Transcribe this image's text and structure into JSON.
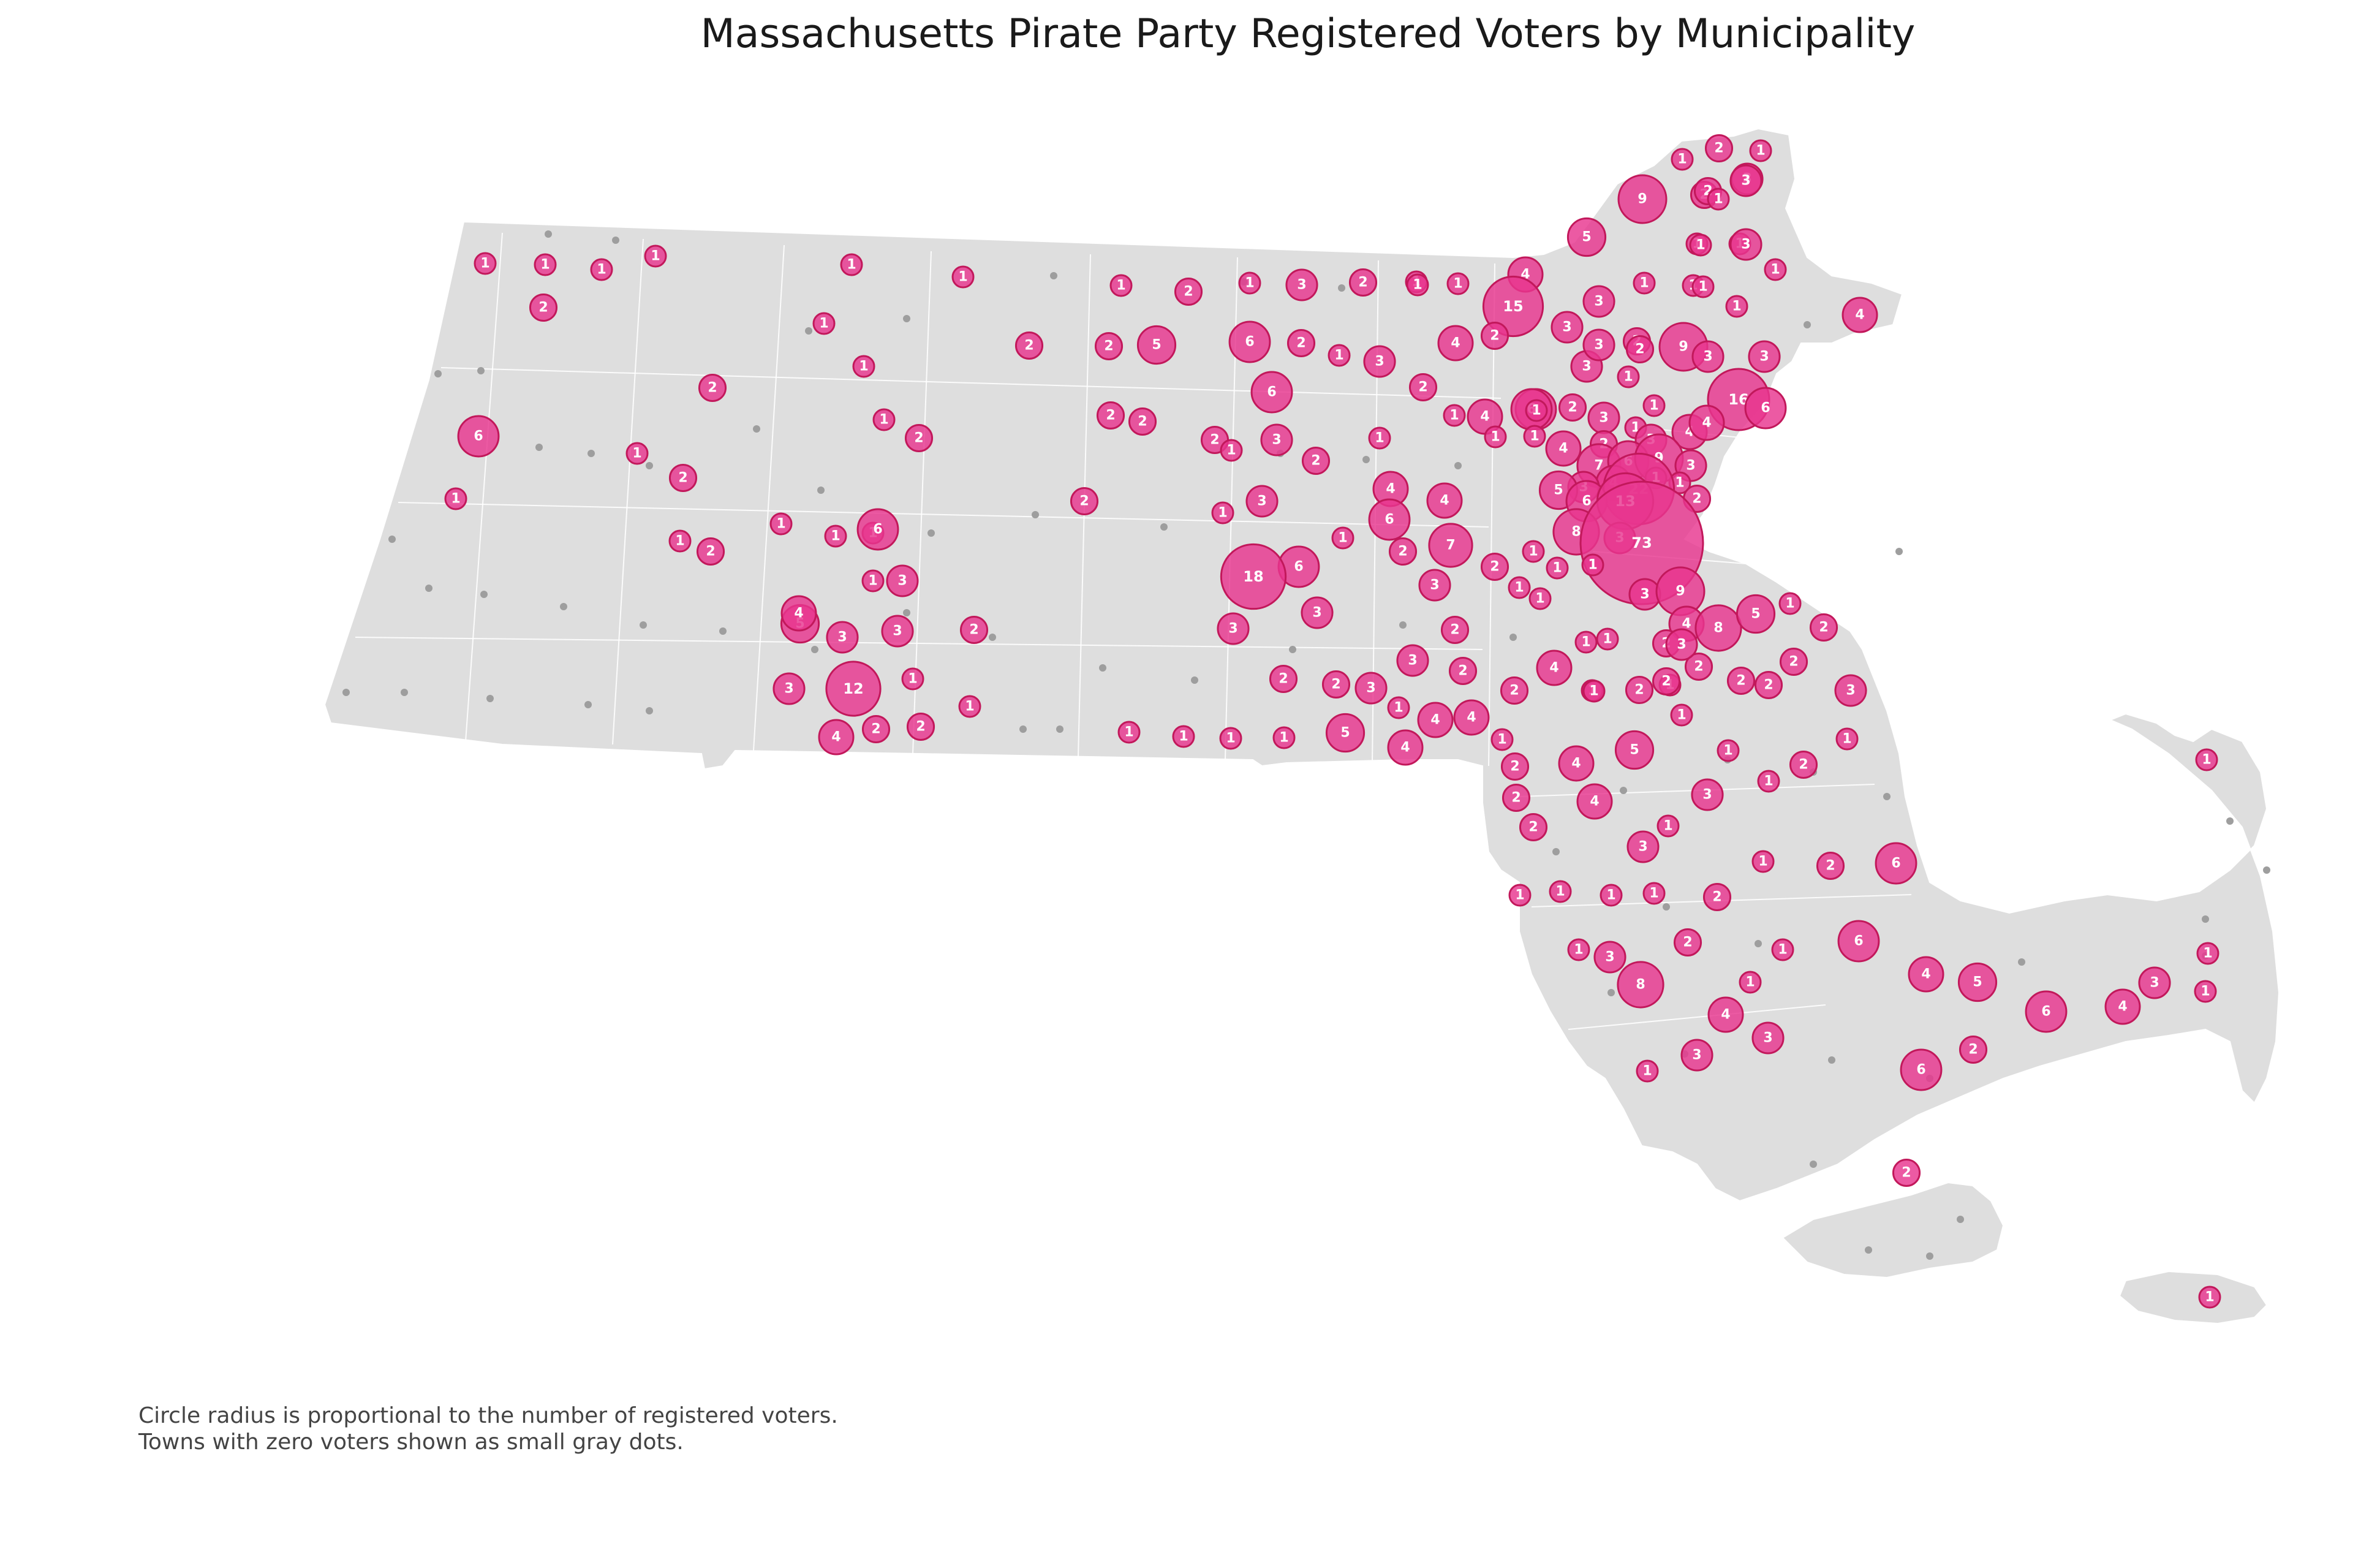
{
  "title": "Massachusetts Pirate Party Registered Voters by Municipality",
  "notes": [
    "Circle radius is proportional to the number of registered voters.",
    "Towns with zero voters shown as small gray dots."
  ],
  "colors": {
    "land": "#dedede",
    "town_border": "#ffffff",
    "bubble_fill": "#e8368f",
    "bubble_stroke": "#c2185b",
    "label": "#ffffff",
    "zero_dot": "#9e9e9e"
  },
  "map": {
    "region": "Massachusetts",
    "encoding": "proportional-circle",
    "bubble_values": [
      1,
      1,
      1,
      1,
      1,
      2,
      1,
      1,
      1,
      1,
      1,
      2,
      1,
      1,
      3,
      2,
      1,
      1,
      1,
      1,
      1,
      2,
      5,
      6,
      2,
      1,
      3,
      2,
      1,
      1,
      1,
      1,
      1,
      4,
      15,
      9,
      5,
      3,
      2,
      1,
      2,
      1,
      1,
      1,
      1,
      2,
      1,
      2,
      1,
      1,
      3,
      1,
      4,
      1,
      1,
      3,
      2,
      6,
      1,
      1,
      2,
      2,
      2,
      1,
      2,
      5,
      6,
      1,
      1,
      1,
      6,
      2,
      1,
      4,
      2,
      2,
      1,
      3,
      3,
      3,
      6,
      2,
      1,
      1,
      9,
      3,
      3,
      16,
      6,
      4,
      1,
      1,
      1,
      6,
      2,
      1,
      1,
      1,
      2,
      1,
      2,
      1,
      3,
      4,
      4,
      2,
      2,
      1,
      1,
      3,
      2,
      4,
      3,
      1,
      7,
      6,
      9,
      3,
      4,
      1,
      3,
      1,
      5,
      6,
      22,
      1,
      3,
      6,
      13,
      2,
      8,
      6,
      3,
      73,
      6,
      1,
      6,
      2,
      3,
      18,
      7,
      5,
      2,
      1,
      3,
      1,
      1,
      9,
      1,
      1,
      3,
      4,
      5,
      8,
      2,
      4,
      3,
      3,
      2,
      4,
      2,
      1,
      2,
      3,
      1,
      2,
      1,
      3,
      2,
      1,
      3,
      2,
      1,
      2,
      1,
      2,
      2,
      1,
      1,
      1,
      1,
      5,
      1,
      4,
      4,
      1,
      1,
      4,
      1,
      2,
      2,
      1,
      12,
      3,
      1,
      1,
      2,
      2,
      1,
      2,
      1,
      3,
      1,
      4,
      2,
      2,
      2,
      5,
      4,
      3,
      6,
      1,
      2,
      1,
      1,
      1,
      3,
      1,
      2,
      6,
      1,
      8,
      1,
      3,
      4,
      4,
      5,
      6,
      4,
      1,
      3,
      3,
      6,
      1,
      2,
      4,
      1,
      1,
      2,
      1
    ]
  }
}
